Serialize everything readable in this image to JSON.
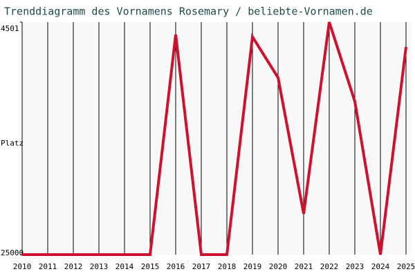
{
  "chart_data": {
    "type": "line",
    "title": "Trenddiagramm des Vornamens Rosemary / beliebte-Vornamen.de",
    "ylabel": "Platz",
    "x": [
      2010,
      2011,
      2012,
      2013,
      2014,
      2015,
      2016,
      2017,
      2018,
      2019,
      2020,
      2021,
      2022,
      2023,
      2024,
      2025
    ],
    "series": [
      {
        "name": "Rosemary",
        "color": "#d0102f",
        "values": [
          25000,
          25000,
          25000,
          25000,
          25000,
          25000,
          5600,
          25000,
          25000,
          5800,
          9400,
          21400,
          4501,
          11500,
          25000,
          6700
        ]
      }
    ],
    "ylim": [
      25000,
      4501
    ],
    "yticks": [
      4501,
      25000
    ],
    "grid": true
  }
}
